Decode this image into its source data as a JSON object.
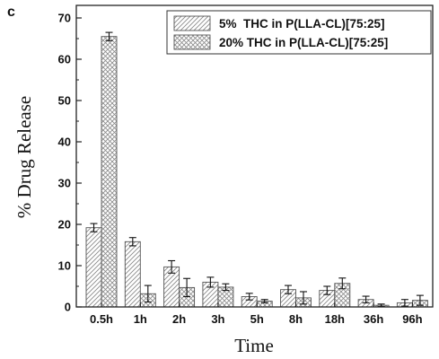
{
  "chart_data": {
    "type": "bar",
    "panel_label": "c",
    "xlabel": "Time",
    "ylabel": "% Drug Release",
    "ylim": [
      0,
      75
    ],
    "yticks": [
      0,
      10,
      20,
      30,
      40,
      50,
      60,
      70
    ],
    "categories": [
      "0.5h",
      "1h",
      "2h",
      "3h",
      "5h",
      "8h",
      "18h",
      "36h",
      "96h"
    ],
    "series": [
      {
        "name": "5%  THC in P(LLA-CL)[75:25]",
        "pattern": "diagonal-hatch",
        "values": [
          19.2,
          15.8,
          9.7,
          6.0,
          2.5,
          4.2,
          4.0,
          1.8,
          1.0
        ],
        "errors": [
          1.0,
          1.0,
          1.5,
          1.2,
          0.8,
          1.0,
          1.0,
          0.8,
          0.8
        ]
      },
      {
        "name": "20% THC in P(LLA-CL)[75:25]",
        "pattern": "cross-hatch",
        "values": [
          65.5,
          3.2,
          4.7,
          4.8,
          1.4,
          2.2,
          5.7,
          0.4,
          1.6
        ],
        "errors": [
          1.0,
          2.0,
          2.2,
          0.8,
          0.4,
          1.5,
          1.3,
          0.3,
          1.2
        ]
      }
    ],
    "legend_position": "top-right",
    "grid": false
  }
}
